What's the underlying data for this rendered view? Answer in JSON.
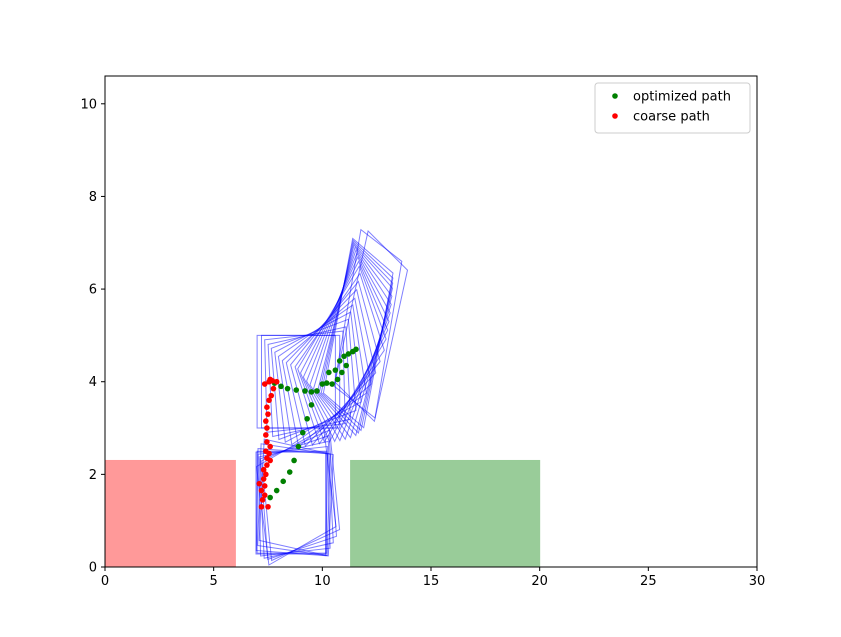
{
  "chart_data": {
    "type": "scatter",
    "title": "",
    "xlabel": "",
    "ylabel": "",
    "xlim": [
      0,
      30
    ],
    "ylim": [
      0,
      10.6
    ],
    "xticks": [
      0,
      5,
      10,
      15,
      20,
      25,
      30
    ],
    "yticks": [
      0,
      2,
      4,
      6,
      8,
      10
    ],
    "grid": false,
    "legend_position": "top-right",
    "series": [
      {
        "name": "optimized path",
        "color": "#008000",
        "marker": "dot",
        "points": [
          [
            7.6,
            1.5
          ],
          [
            7.9,
            1.65
          ],
          [
            8.2,
            1.85
          ],
          [
            8.5,
            2.05
          ],
          [
            8.7,
            2.3
          ],
          [
            8.9,
            2.6
          ],
          [
            9.1,
            2.9
          ],
          [
            9.3,
            3.2
          ],
          [
            9.5,
            3.5
          ],
          [
            9.75,
            3.8
          ],
          [
            10.0,
            3.95
          ],
          [
            10.2,
            3.97
          ],
          [
            10.3,
            4.2
          ],
          [
            10.6,
            4.25
          ],
          [
            10.8,
            4.45
          ],
          [
            11.0,
            4.55
          ],
          [
            11.2,
            4.6
          ],
          [
            11.4,
            4.65
          ],
          [
            11.55,
            4.7
          ],
          [
            10.9,
            4.2
          ],
          [
            11.1,
            4.35
          ],
          [
            10.7,
            4.05
          ],
          [
            10.45,
            3.95
          ],
          [
            7.8,
            3.97
          ],
          [
            8.1,
            3.9
          ],
          [
            8.4,
            3.85
          ],
          [
            8.8,
            3.82
          ],
          [
            9.2,
            3.8
          ],
          [
            9.5,
            3.78
          ]
        ]
      },
      {
        "name": "coarse path",
        "color": "#ff0000",
        "marker": "dot",
        "points": [
          [
            7.2,
            1.3
          ],
          [
            7.5,
            1.3
          ],
          [
            7.25,
            1.45
          ],
          [
            7.35,
            1.55
          ],
          [
            7.2,
            1.65
          ],
          [
            7.35,
            1.75
          ],
          [
            7.1,
            1.8
          ],
          [
            7.3,
            1.9
          ],
          [
            7.4,
            2.0
          ],
          [
            7.3,
            2.1
          ],
          [
            7.45,
            2.2
          ],
          [
            7.6,
            2.3
          ],
          [
            7.45,
            2.35
          ],
          [
            7.55,
            2.45
          ],
          [
            7.4,
            2.5
          ],
          [
            7.6,
            2.6
          ],
          [
            7.45,
            2.7
          ],
          [
            7.4,
            2.85
          ],
          [
            7.45,
            3.0
          ],
          [
            7.4,
            3.15
          ],
          [
            7.5,
            3.3
          ],
          [
            7.45,
            3.45
          ],
          [
            7.55,
            3.6
          ],
          [
            7.65,
            3.7
          ],
          [
            7.75,
            3.85
          ],
          [
            7.35,
            3.95
          ],
          [
            7.55,
            4.0
          ],
          [
            7.7,
            4.02
          ],
          [
            7.9,
            4.0
          ],
          [
            7.6,
            4.05
          ]
        ]
      }
    ],
    "regions": [
      {
        "x0": 0,
        "x1": 6,
        "y0": 0,
        "y1": 2.3,
        "color": "#ff9999"
      },
      {
        "x0": 11.3,
        "x1": 20,
        "y0": 0,
        "y1": 2.3,
        "color": "#99cc99"
      }
    ],
    "footprint_color": "#0000ff",
    "footprints": [
      {
        "cx": 8.6,
        "cy": 1.4,
        "w": 3.2,
        "h": 2.2,
        "angle": 0
      },
      {
        "cx": 8.7,
        "cy": 1.42,
        "w": 3.2,
        "h": 2.2,
        "angle": 3
      },
      {
        "cx": 8.8,
        "cy": 1.45,
        "w": 3.2,
        "h": 2.2,
        "angle": 6
      },
      {
        "cx": 8.9,
        "cy": 1.5,
        "w": 3.2,
        "h": 2.2,
        "angle": 9
      },
      {
        "cx": 9.0,
        "cy": 1.55,
        "w": 3.2,
        "h": 2.2,
        "angle": 12
      },
      {
        "cx": 8.55,
        "cy": 1.38,
        "w": 3.2,
        "h": 2.2,
        "angle": 0
      },
      {
        "cx": 8.6,
        "cy": 1.4,
        "w": 3.2,
        "h": 2.2,
        "angle": -2
      },
      {
        "cx": 8.7,
        "cy": 1.45,
        "w": 3.2,
        "h": 2.2,
        "angle": -4
      },
      {
        "cx": 8.8,
        "cy": 1.5,
        "w": 3.2,
        "h": 2.2,
        "angle": -6
      },
      {
        "cx": 8.8,
        "cy": 1.52,
        "w": 3.2,
        "h": 2.2,
        "angle": 15
      },
      {
        "cx": 8.8,
        "cy": 4.0,
        "w": 3.6,
        "h": 2.0,
        "angle": 0
      },
      {
        "cx": 9.0,
        "cy": 4.0,
        "w": 3.6,
        "h": 2.0,
        "angle": 0
      },
      {
        "cx": 9.2,
        "cy": 4.0,
        "w": 3.6,
        "h": 2.0,
        "angle": 3
      },
      {
        "cx": 9.4,
        "cy": 4.0,
        "w": 3.6,
        "h": 2.0,
        "angle": 6
      },
      {
        "cx": 9.6,
        "cy": 4.05,
        "w": 3.6,
        "h": 2.0,
        "angle": 10
      },
      {
        "cx": 9.8,
        "cy": 4.1,
        "w": 3.6,
        "h": 2.0,
        "angle": 14
      },
      {
        "cx": 10.0,
        "cy": 4.15,
        "w": 3.6,
        "h": 2.0,
        "angle": 18
      },
      {
        "cx": 10.2,
        "cy": 4.2,
        "w": 3.6,
        "h": 2.0,
        "angle": 22
      },
      {
        "cx": 10.4,
        "cy": 4.3,
        "w": 3.6,
        "h": 2.0,
        "angle": 26
      },
      {
        "cx": 10.6,
        "cy": 4.4,
        "w": 3.6,
        "h": 2.0,
        "angle": 30
      },
      {
        "cx": 10.8,
        "cy": 4.5,
        "w": 3.6,
        "h": 2.0,
        "angle": 34
      },
      {
        "cx": 10.9,
        "cy": 4.6,
        "w": 3.6,
        "h": 2.0,
        "angle": 38
      },
      {
        "cx": 11.0,
        "cy": 4.65,
        "w": 3.6,
        "h": 2.0,
        "angle": 42
      },
      {
        "cx": 11.1,
        "cy": 4.7,
        "w": 3.6,
        "h": 2.0,
        "angle": 46
      },
      {
        "cx": 11.2,
        "cy": 4.75,
        "w": 3.6,
        "h": 2.0,
        "angle": 50
      },
      {
        "cx": 11.3,
        "cy": 4.8,
        "w": 3.6,
        "h": 2.0,
        "angle": 54
      },
      {
        "cx": 11.4,
        "cy": 4.85,
        "w": 3.6,
        "h": 2.0,
        "angle": 58
      },
      {
        "cx": 11.5,
        "cy": 4.9,
        "w": 3.6,
        "h": 2.0,
        "angle": 62
      },
      {
        "cx": 11.55,
        "cy": 4.95,
        "w": 3.6,
        "h": 2.0,
        "angle": 64
      },
      {
        "cx": 11.6,
        "cy": 5.0,
        "w": 3.6,
        "h": 2.0,
        "angle": 66
      },
      {
        "cx": 11.65,
        "cy": 5.05,
        "w": 3.6,
        "h": 2.0,
        "angle": 68
      },
      {
        "cx": 12.1,
        "cy": 5.25,
        "w": 3.6,
        "h": 2.0,
        "angle": 70
      },
      {
        "cx": 12.25,
        "cy": 5.2,
        "w": 3.6,
        "h": 2.0,
        "angle": 65
      }
    ]
  }
}
